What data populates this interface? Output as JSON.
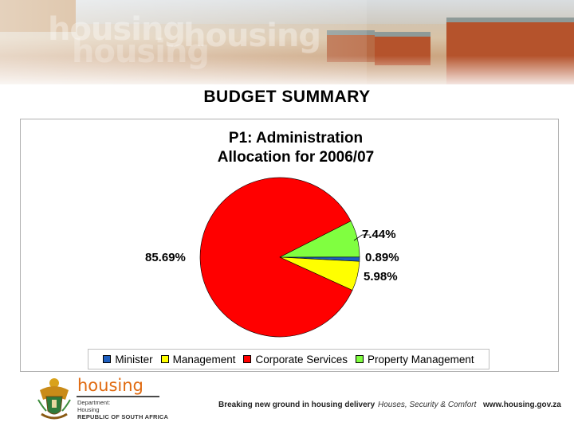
{
  "slide": {
    "title": "BUDGET SUMMARY"
  },
  "chart_data": {
    "type": "pie",
    "title_line1": "P1: Administration",
    "title_line2": "Allocation for 2006/07",
    "categories": [
      "Minister",
      "Management",
      "Corporate Services",
      "Property Management"
    ],
    "values": [
      0.89,
      5.98,
      85.69,
      7.44
    ],
    "labels": [
      "0.89%",
      "5.98%",
      "85.69%",
      "7.44%"
    ],
    "colors": [
      "#1f5fbf",
      "#ffff00",
      "#ff0000",
      "#80ff40"
    ],
    "legend_position": "bottom"
  },
  "footer": {
    "logo_word": "housing",
    "dept_line1": "Department:",
    "dept_line2": "Housing",
    "dept_line3": "REPUBLIC OF SOUTH AFRICA",
    "tagline1": "Breaking new ground in housing delivery",
    "tagline2": "Houses, Security & Comfort",
    "website": "www.housing.gov.za"
  }
}
